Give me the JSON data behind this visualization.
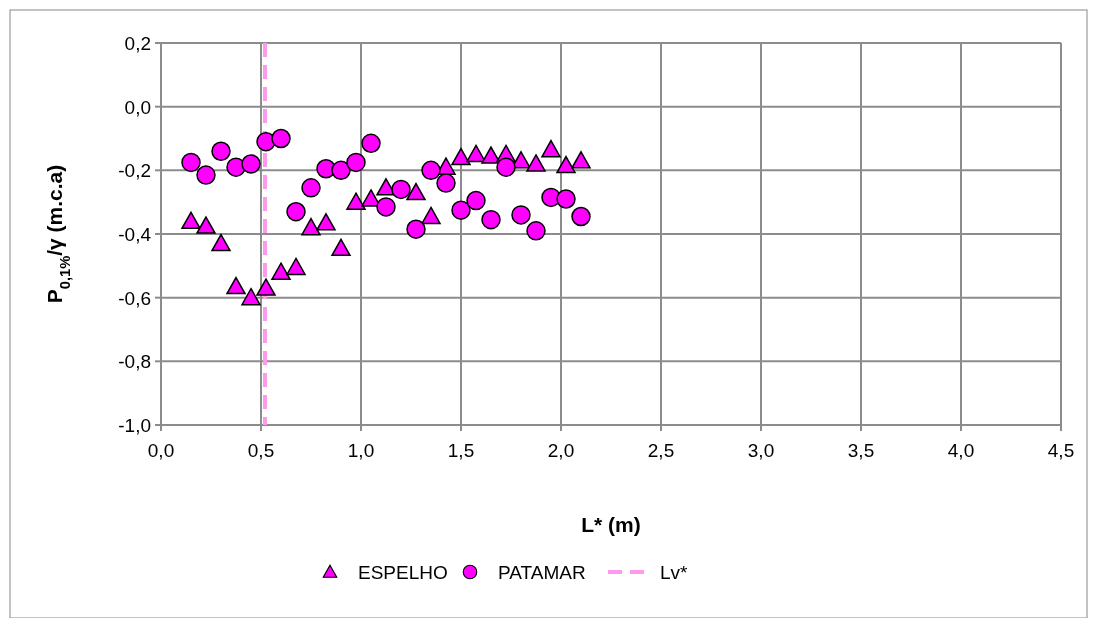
{
  "chart_data": {
    "type": "scatter",
    "xlabel": "L* (m)",
    "ylabel": "P$_{0,1%}$/γ (m.c.a)",
    "x": [
      0.15,
      0.225,
      0.3,
      0.375,
      0.45,
      0.525,
      0.6,
      0.675,
      0.75,
      0.825,
      0.9,
      0.975,
      1.05,
      1.125,
      1.2,
      1.275,
      1.35,
      1.425,
      1.5,
      1.575,
      1.65,
      1.725,
      1.8,
      1.875,
      1.95,
      2.025,
      2.1
    ],
    "series": [
      {
        "name": "ESPELHO",
        "color": "#ff00ff",
        "marker": "triangle",
        "values": [
          -0.36,
          -0.375,
          -0.43,
          -0.565,
          -0.6,
          -0.57,
          -0.52,
          -0.505,
          -0.38,
          -0.365,
          -0.445,
          -0.3,
          -0.29,
          -0.255,
          null,
          -0.27,
          -0.345,
          -0.19,
          -0.16,
          -0.15,
          -0.155,
          -0.15,
          -0.17,
          -0.18,
          -0.135,
          -0.185,
          -0.17
        ]
      },
      {
        "name": "PATAMAR",
        "color": "#ff00ff",
        "marker": "circle",
        "values": [
          -0.175,
          -0.215,
          -0.14,
          -0.19,
          -0.18,
          -0.11,
          -0.1,
          -0.33,
          -0.255,
          -0.195,
          -0.2,
          -0.175,
          -0.115,
          -0.315,
          -0.26,
          -0.385,
          -0.2,
          -0.24,
          -0.325,
          -0.295,
          -0.355,
          -0.19,
          -0.34,
          -0.39,
          -0.285,
          -0.29,
          -0.345
        ]
      }
    ],
    "ref_lines": [
      {
        "axis": "x",
        "value": 0.52,
        "label": "Lv*",
        "color": "#ff99ee",
        "line_style": "dashed"
      }
    ],
    "xlim": [
      0,
      4.5
    ],
    "xticks": [
      {
        "value": 0,
        "label": "0,0"
      },
      {
        "value": 0.5,
        "label": "0,5"
      },
      {
        "value": 1,
        "label": "1,0"
      },
      {
        "value": 1.5,
        "label": "1,5"
      },
      {
        "value": 2,
        "label": "2,0"
      },
      {
        "value": 2.5,
        "label": "2,5"
      },
      {
        "value": 3,
        "label": "3,0"
      },
      {
        "value": 3.5,
        "label": "3,5"
      },
      {
        "value": 4,
        "label": "4,0"
      },
      {
        "value": 4.5,
        "label": "4,5"
      }
    ],
    "ylim": [
      -1,
      0.2
    ],
    "yticks": [
      {
        "value": -1,
        "label": "-1,0"
      },
      {
        "value": -0.8,
        "label": "-0,8"
      },
      {
        "value": -0.6,
        "label": "-0,6"
      },
      {
        "value": -0.4,
        "label": "-0,4"
      },
      {
        "value": -0.2,
        "label": "-0,2"
      },
      {
        "value": 0,
        "label": "0,0"
      },
      {
        "value": 0.2,
        "label": "0,2"
      }
    ],
    "grid": true,
    "legend": "bottom"
  }
}
